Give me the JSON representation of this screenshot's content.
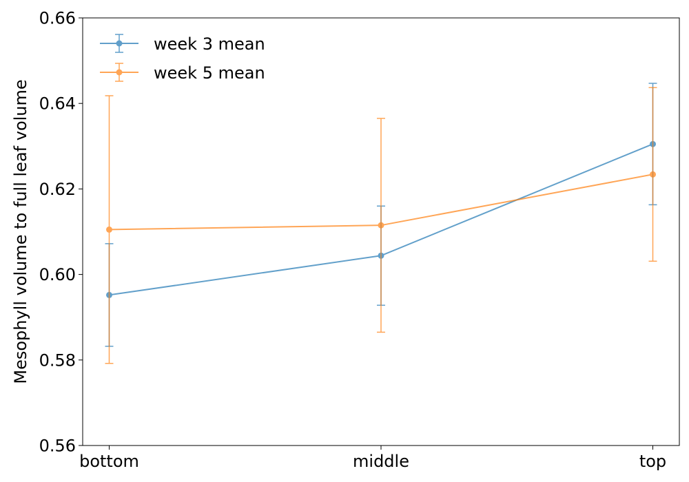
{
  "chart_data": {
    "type": "line",
    "title": "",
    "xlabel": "",
    "ylabel": "Mesophyll volume to full leaf volume",
    "categories": [
      "bottom",
      "middle",
      "top"
    ],
    "ylim": [
      0.56,
      0.66
    ],
    "yticks": [
      0.56,
      0.58,
      0.6,
      0.62,
      0.64,
      0.66
    ],
    "ytick_labels": [
      "0.56",
      "0.58",
      "0.60",
      "0.62",
      "0.64",
      "0.66"
    ],
    "grid": false,
    "legend_position": "top-left",
    "series": [
      {
        "name": "week 3 mean",
        "color": "#1f77b4",
        "values": [
          0.5952,
          0.6044,
          0.6305
        ],
        "error": [
          0.012,
          0.0116,
          0.0142
        ]
      },
      {
        "name": "week 5 mean",
        "color": "#ff7f0e",
        "values": [
          0.6105,
          0.6115,
          0.6234
        ],
        "error": [
          0.0313,
          0.025,
          0.0203
        ]
      }
    ]
  }
}
